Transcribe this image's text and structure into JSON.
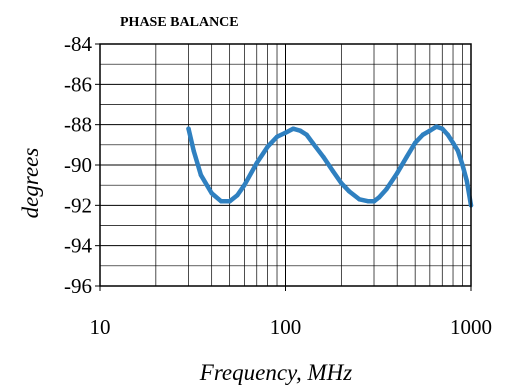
{
  "chart_data": {
    "type": "line",
    "title": "PHASE BALANCE",
    "xlabel": "Frequency, MHz",
    "ylabel": "degrees",
    "xscale": "log",
    "xlim": [
      10,
      1000
    ],
    "ylim": [
      -96,
      -84
    ],
    "x_ticks": [
      10,
      100,
      1000
    ],
    "x_tick_labels": [
      "10",
      "100",
      "1000"
    ],
    "y_ticks": [
      -96,
      -94,
      -92,
      -90,
      -88,
      -86,
      -84
    ],
    "y_tick_labels": [
      "-96",
      "-94",
      "-92",
      "-90",
      "-88",
      "-86",
      "-84"
    ],
    "grid": true,
    "line_color": "#2f80c0",
    "series": [
      {
        "x": [
          30,
          32,
          35,
          40,
          45,
          50,
          55,
          60,
          70,
          80,
          90,
          100,
          110,
          120,
          130,
          140,
          160,
          180,
          200,
          220,
          250,
          280,
          300,
          320,
          350,
          400,
          450,
          500,
          550,
          600,
          650,
          700,
          750,
          800,
          850,
          900,
          950,
          1000
        ],
        "y": [
          -88.2,
          -89.3,
          -90.5,
          -91.4,
          -91.8,
          -91.8,
          -91.5,
          -91.0,
          -89.9,
          -89.1,
          -88.6,
          -88.4,
          -88.2,
          -88.3,
          -88.5,
          -88.9,
          -89.6,
          -90.3,
          -90.9,
          -91.3,
          -91.7,
          -91.8,
          -91.8,
          -91.6,
          -91.2,
          -90.4,
          -89.6,
          -88.9,
          -88.5,
          -88.3,
          -88.1,
          -88.2,
          -88.5,
          -88.9,
          -89.3,
          -90.0,
          -90.8,
          -92.0
        ]
      }
    ]
  }
}
